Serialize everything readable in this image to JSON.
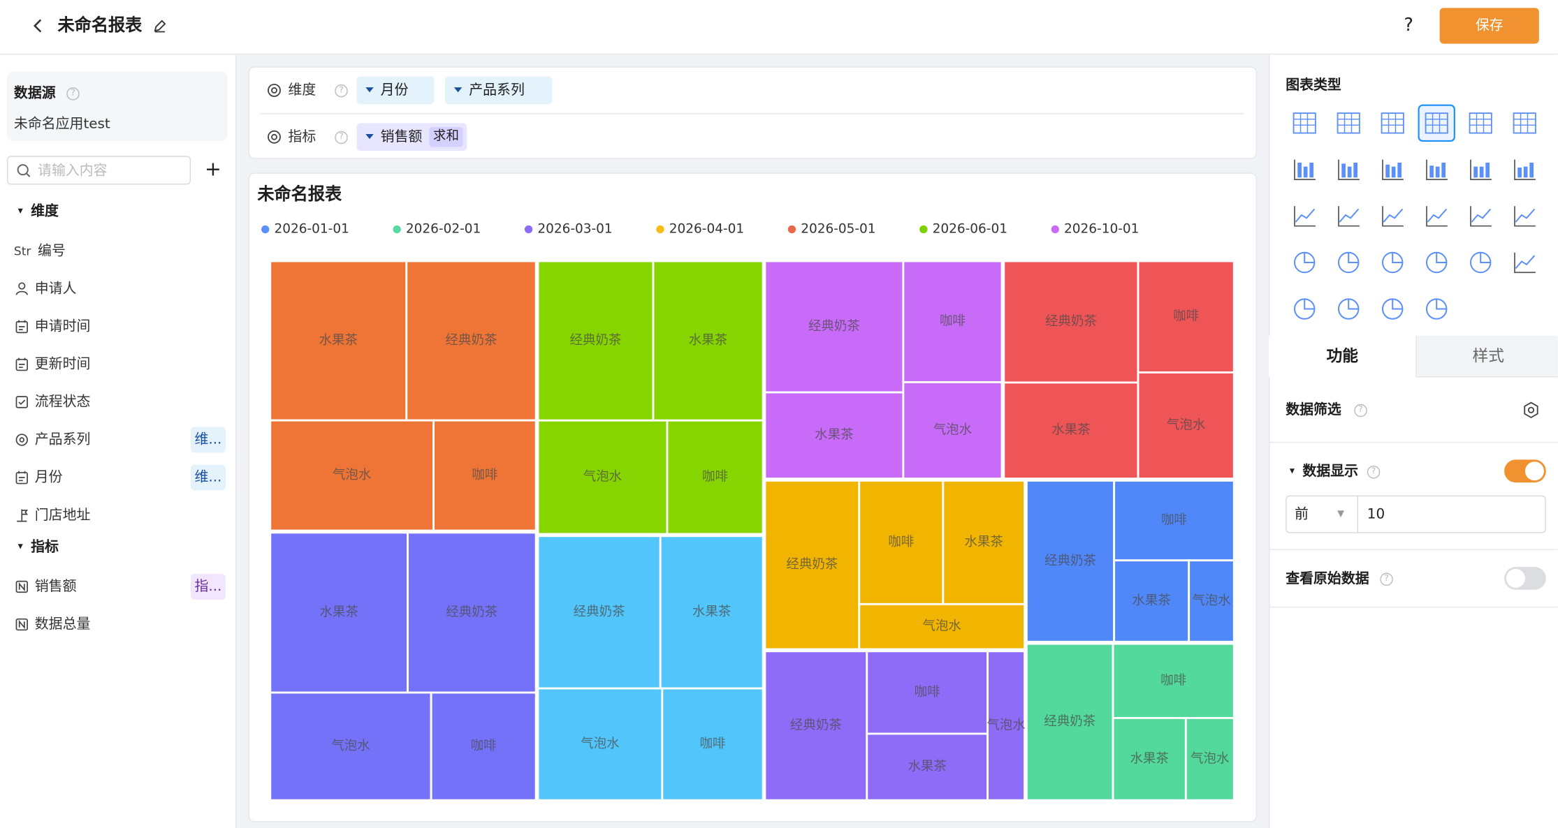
{
  "header": {
    "title": "未命名报表",
    "help": "?",
    "save_button": "保存"
  },
  "sidebar": {
    "datasource_label": "数据源",
    "datasource_name": "未命名应用test",
    "search_placeholder": "请输入内容",
    "add": "+",
    "dimensions": {
      "heading": "维度",
      "fields": [
        {
          "type": "Str",
          "name": "编号"
        },
        {
          "name": "申请人"
        },
        {
          "name": "申请时间"
        },
        {
          "name": "更新时间"
        },
        {
          "name": "流程状态"
        },
        {
          "name": "产品系列",
          "tag": "维..."
        },
        {
          "name": "月份",
          "tag": "维..."
        },
        {
          "name": "门店地址"
        }
      ]
    },
    "measures": {
      "heading": "指标",
      "fields": [
        {
          "name": "销售额",
          "tag": "指..."
        },
        {
          "name": "数据总量"
        }
      ]
    }
  },
  "config": {
    "dimension_label": "维度",
    "dimension_chips": [
      "月份",
      "产品系列"
    ],
    "measure_label": "指标",
    "measure_chips": [
      {
        "name": "销售额",
        "aggregation": "求和"
      }
    ]
  },
  "chart_data": {
    "type": "treemap",
    "title": "未命名报表",
    "legend": [
      {
        "name": "2026-01-01",
        "color": "#5b8ff9"
      },
      {
        "name": "2026-02-01",
        "color": "#5ad8a6"
      },
      {
        "name": "2026-03-01",
        "color": "#8c6cf8"
      },
      {
        "name": "2026-04-01",
        "color": "#f6bd16"
      },
      {
        "name": "2026-05-01",
        "color": "#e8684a"
      },
      {
        "name": "2026-06-01",
        "color": "#7cd100"
      },
      {
        "name": "2026-10-01",
        "color": "#c86bf9"
      }
    ],
    "groups": [
      {
        "color": "#ee7536",
        "categories": [
          "水果茶",
          "经典奶茶",
          "气泡水",
          "咖啡"
        ],
        "values": [
          223,
          212,
          185,
          116
        ]
      },
      {
        "color": "#7572fa",
        "categories": [
          "水果茶",
          "经典奶茶",
          "气泡水",
          "咖啡"
        ],
        "values": [
          226,
          211,
          178,
          116
        ]
      },
      {
        "color": "#86d400",
        "categories": [
          "经典奶茶",
          "水果茶",
          "气泡水",
          "咖啡"
        ],
        "values": [
          189,
          180,
          151,
          112
        ]
      },
      {
        "color": "#52c5fa",
        "categories": [
          "经典奶茶",
          "水果茶",
          "气泡水",
          "咖啡"
        ],
        "values": [
          192,
          161,
          143,
          116
        ]
      },
      {
        "color": "#c86bf9",
        "categories": [
          "经典奶茶",
          "水果茶",
          "咖啡",
          "气泡水"
        ],
        "values": [
          187,
          123,
          123,
          98
        ]
      },
      {
        "color": "#ef5457",
        "categories": [
          "经典奶茶",
          "水果茶",
          "咖啡",
          "气泡水"
        ],
        "values": [
          168,
          133,
          110,
          105
        ]
      },
      {
        "color": "#f1b500",
        "categories": [
          "经典奶茶",
          "咖啡",
          "水果茶",
          "气泡水"
        ],
        "values": [
          164,
          107,
          104,
          77
        ]
      },
      {
        "color": "#8f6cf8",
        "categories": [
          "经典奶茶",
          "咖啡",
          "水果茶",
          "气泡水"
        ],
        "values": [
          157,
          103,
          83,
          57
        ]
      },
      {
        "color": "#5088f9",
        "categories": [
          "经典奶茶",
          "咖啡",
          "水果茶",
          "气泡水"
        ],
        "values": [
          146,
          99,
          63,
          38
        ]
      },
      {
        "color": "#52d99b",
        "categories": [
          "经典奶茶",
          "咖啡",
          "水果茶",
          "气泡水"
        ],
        "values": [
          140,
          93,
          62,
          41
        ]
      }
    ]
  },
  "right_panel": {
    "chart_type_heading": "图表类型",
    "tabs": [
      "功能",
      "样式"
    ],
    "data_filter": "数据筛选",
    "data_display": "数据显示",
    "display_mode": "前",
    "display_count": 10,
    "view_raw_data": "查看原始数据"
  }
}
